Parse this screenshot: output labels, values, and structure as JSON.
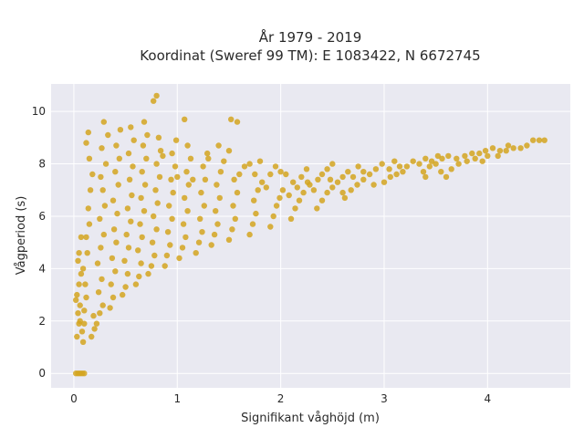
{
  "chart_data": {
    "type": "scatter",
    "title": "År 1979 - 2019",
    "subtitle": "Koordinat (Sweref 99 TM): E 1083422, N 6672745",
    "xlabel": "Signifikant våghöjd (m)",
    "ylabel": "Vågperiod (s)",
    "xlim": [
      -0.22,
      4.8
    ],
    "ylim": [
      -0.55,
      11.05
    ],
    "xticks": [
      0,
      1,
      2,
      3,
      4
    ],
    "yticks": [
      0,
      2,
      4,
      6,
      8,
      10
    ],
    "grid": true,
    "marker_color": "#D4A520",
    "plot_background": "#E9E9F1",
    "points": [
      [
        0.02,
        0.0
      ],
      [
        0.04,
        0.0
      ],
      [
        0.06,
        0.0
      ],
      [
        0.08,
        0.0
      ],
      [
        0.1,
        0.0
      ],
      [
        0.03,
        1.4
      ],
      [
        0.05,
        1.9
      ],
      [
        0.04,
        2.3
      ],
      [
        0.06,
        2.6
      ],
      [
        0.03,
        3.0
      ],
      [
        0.05,
        3.4
      ],
      [
        0.07,
        3.8
      ],
      [
        0.04,
        4.3
      ],
      [
        0.09,
        1.2
      ],
      [
        0.08,
        1.6
      ],
      [
        0.06,
        2.0
      ],
      [
        0.02,
        2.8
      ],
      [
        0.05,
        4.6
      ],
      [
        0.07,
        5.2
      ],
      [
        0.1,
        1.9
      ],
      [
        0.1,
        2.4
      ],
      [
        0.12,
        2.9
      ],
      [
        0.11,
        3.4
      ],
      [
        0.09,
        4.0
      ],
      [
        0.13,
        4.6
      ],
      [
        0.12,
        5.2
      ],
      [
        0.15,
        5.7
      ],
      [
        0.14,
        6.3
      ],
      [
        0.16,
        7.0
      ],
      [
        0.18,
        7.6
      ],
      [
        0.15,
        8.2
      ],
      [
        0.12,
        8.8
      ],
      [
        0.14,
        9.2
      ],
      [
        0.17,
        1.4
      ],
      [
        0.2,
        1.7
      ],
      [
        0.19,
        2.2
      ],
      [
        0.22,
        1.9
      ],
      [
        0.25,
        2.3
      ],
      [
        0.28,
        2.6
      ],
      [
        0.24,
        3.1
      ],
      [
        0.27,
        3.6
      ],
      [
        0.23,
        4.2
      ],
      [
        0.26,
        4.8
      ],
      [
        0.29,
        5.3
      ],
      [
        0.25,
        5.9
      ],
      [
        0.3,
        6.4
      ],
      [
        0.28,
        7.0
      ],
      [
        0.26,
        7.5
      ],
      [
        0.31,
        8.0
      ],
      [
        0.27,
        8.6
      ],
      [
        0.33,
        9.1
      ],
      [
        0.29,
        9.6
      ],
      [
        0.35,
        2.5
      ],
      [
        0.38,
        2.9
      ],
      [
        0.36,
        3.4
      ],
      [
        0.4,
        3.9
      ],
      [
        0.37,
        4.4
      ],
      [
        0.41,
        5.0
      ],
      [
        0.39,
        5.5
      ],
      [
        0.42,
        6.1
      ],
      [
        0.38,
        6.6
      ],
      [
        0.43,
        7.2
      ],
      [
        0.4,
        7.7
      ],
      [
        0.44,
        8.2
      ],
      [
        0.41,
        8.7
      ],
      [
        0.45,
        9.3
      ],
      [
        0.47,
        3.0
      ],
      [
        0.5,
        3.3
      ],
      [
        0.52,
        3.8
      ],
      [
        0.49,
        4.3
      ],
      [
        0.53,
        4.8
      ],
      [
        0.51,
        5.3
      ],
      [
        0.55,
        5.8
      ],
      [
        0.52,
        6.3
      ],
      [
        0.56,
        6.8
      ],
      [
        0.54,
        7.4
      ],
      [
        0.57,
        7.9
      ],
      [
        0.53,
        8.4
      ],
      [
        0.58,
        8.9
      ],
      [
        0.55,
        9.4
      ],
      [
        0.6,
        3.4
      ],
      [
        0.63,
        3.7
      ],
      [
        0.65,
        4.2
      ],
      [
        0.62,
        4.7
      ],
      [
        0.66,
        5.2
      ],
      [
        0.64,
        5.7
      ],
      [
        0.68,
        6.2
      ],
      [
        0.65,
        6.7
      ],
      [
        0.69,
        7.2
      ],
      [
        0.66,
        7.7
      ],
      [
        0.7,
        8.2
      ],
      [
        0.67,
        8.7
      ],
      [
        0.71,
        9.1
      ],
      [
        0.68,
        9.6
      ],
      [
        0.77,
        10.4
      ],
      [
        0.8,
        10.6
      ],
      [
        0.72,
        3.8
      ],
      [
        0.75,
        4.1
      ],
      [
        0.78,
        4.5
      ],
      [
        0.76,
        5.0
      ],
      [
        0.8,
        5.5
      ],
      [
        0.77,
        6.0
      ],
      [
        0.81,
        6.5
      ],
      [
        0.79,
        7.0
      ],
      [
        0.83,
        7.5
      ],
      [
        0.8,
        8.0
      ],
      [
        0.84,
        8.5
      ],
      [
        0.82,
        9.0
      ],
      [
        0.86,
        8.3
      ],
      [
        0.88,
        4.1
      ],
      [
        0.9,
        4.5
      ],
      [
        0.93,
        4.9
      ],
      [
        0.91,
        5.4
      ],
      [
        0.95,
        5.9
      ],
      [
        0.92,
        6.4
      ],
      [
        0.96,
        6.9
      ],
      [
        0.94,
        7.4
      ],
      [
        0.98,
        7.9
      ],
      [
        0.95,
        8.4
      ],
      [
        0.99,
        8.9
      ],
      [
        1.0,
        7.5
      ],
      [
        1.02,
        4.4
      ],
      [
        1.05,
        4.8
      ],
      [
        1.08,
        5.2
      ],
      [
        1.06,
        5.7
      ],
      [
        1.1,
        6.2
      ],
      [
        1.07,
        6.7
      ],
      [
        1.11,
        7.2
      ],
      [
        1.09,
        7.7
      ],
      [
        1.13,
        8.2
      ],
      [
        1.1,
        8.7
      ],
      [
        1.07,
        9.7
      ],
      [
        1.15,
        7.4
      ],
      [
        1.18,
        4.6
      ],
      [
        1.21,
        5.0
      ],
      [
        1.24,
        5.4
      ],
      [
        1.22,
        5.9
      ],
      [
        1.26,
        6.4
      ],
      [
        1.23,
        6.9
      ],
      [
        1.27,
        7.4
      ],
      [
        1.25,
        7.9
      ],
      [
        1.29,
        8.4
      ],
      [
        1.3,
        8.2
      ],
      [
        1.4,
        8.7
      ],
      [
        1.33,
        4.9
      ],
      [
        1.36,
        5.3
      ],
      [
        1.39,
        5.7
      ],
      [
        1.37,
        6.2
      ],
      [
        1.41,
        6.7
      ],
      [
        1.38,
        7.2
      ],
      [
        1.42,
        7.7
      ],
      [
        1.45,
        8.1
      ],
      [
        1.5,
        8.5
      ],
      [
        1.52,
        9.7
      ],
      [
        1.58,
        9.6
      ],
      [
        1.5,
        5.1
      ],
      [
        1.53,
        5.5
      ],
      [
        1.56,
        5.9
      ],
      [
        1.54,
        6.4
      ],
      [
        1.58,
        6.9
      ],
      [
        1.55,
        7.4
      ],
      [
        1.6,
        7.6
      ],
      [
        1.65,
        7.9
      ],
      [
        1.7,
        8.0
      ],
      [
        1.75,
        7.6
      ],
      [
        1.8,
        8.1
      ],
      [
        1.7,
        5.3
      ],
      [
        1.73,
        5.7
      ],
      [
        1.76,
        6.1
      ],
      [
        1.74,
        6.6
      ],
      [
        1.78,
        7.0
      ],
      [
        1.82,
        7.3
      ],
      [
        1.86,
        7.1
      ],
      [
        1.9,
        7.6
      ],
      [
        1.95,
        7.9
      ],
      [
        2.0,
        7.7
      ],
      [
        2.05,
        7.6
      ],
      [
        1.9,
        5.6
      ],
      [
        1.93,
        6.0
      ],
      [
        1.96,
        6.4
      ],
      [
        1.99,
        6.7
      ],
      [
        2.02,
        7.0
      ],
      [
        2.08,
        6.8
      ],
      [
        2.12,
        7.3
      ],
      [
        2.16,
        7.1
      ],
      [
        2.2,
        7.5
      ],
      [
        2.25,
        7.8
      ],
      [
        2.26,
        7.3
      ],
      [
        2.1,
        5.9
      ],
      [
        2.14,
        6.3
      ],
      [
        2.18,
        6.6
      ],
      [
        2.22,
        6.9
      ],
      [
        2.28,
        7.2
      ],
      [
        2.32,
        7.0
      ],
      [
        2.36,
        7.4
      ],
      [
        2.4,
        7.6
      ],
      [
        2.45,
        7.8
      ],
      [
        2.5,
        8.0
      ],
      [
        2.48,
        7.4
      ],
      [
        2.35,
        6.3
      ],
      [
        2.4,
        6.6
      ],
      [
        2.45,
        6.9
      ],
      [
        2.5,
        7.1
      ],
      [
        2.55,
        7.3
      ],
      [
        2.6,
        7.5
      ],
      [
        2.65,
        7.7
      ],
      [
        2.7,
        7.5
      ],
      [
        2.75,
        7.9
      ],
      [
        2.8,
        7.7
      ],
      [
        2.6,
        6.9
      ],
      [
        2.62,
        6.7
      ],
      [
        2.68,
        7.0
      ],
      [
        2.74,
        7.2
      ],
      [
        2.8,
        7.4
      ],
      [
        2.86,
        7.6
      ],
      [
        2.92,
        7.8
      ],
      [
        2.98,
        8.0
      ],
      [
        3.05,
        7.8
      ],
      [
        3.1,
        8.1
      ],
      [
        3.15,
        7.9
      ],
      [
        2.9,
        7.2
      ],
      [
        3.0,
        7.3
      ],
      [
        3.06,
        7.5
      ],
      [
        3.12,
        7.6
      ],
      [
        3.18,
        7.7
      ],
      [
        3.22,
        7.9
      ],
      [
        3.28,
        8.1
      ],
      [
        3.34,
        8.0
      ],
      [
        3.4,
        8.2
      ],
      [
        3.46,
        8.1
      ],
      [
        3.52,
        8.3
      ],
      [
        3.38,
        7.7
      ],
      [
        3.44,
        7.9
      ],
      [
        3.5,
        8.0
      ],
      [
        3.56,
        8.2
      ],
      [
        3.62,
        8.3
      ],
      [
        3.7,
        8.2
      ],
      [
        3.78,
        8.3
      ],
      [
        3.85,
        8.4
      ],
      [
        3.55,
        7.7
      ],
      [
        3.65,
        7.8
      ],
      [
        3.72,
        8.0
      ],
      [
        3.8,
        8.1
      ],
      [
        3.88,
        8.2
      ],
      [
        3.92,
        8.4
      ],
      [
        3.98,
        8.5
      ],
      [
        4.05,
        8.6
      ],
      [
        4.12,
        8.5
      ],
      [
        4.2,
        8.7
      ],
      [
        3.95,
        8.1
      ],
      [
        4.0,
        8.3
      ],
      [
        4.1,
        8.3
      ],
      [
        4.18,
        8.5
      ],
      [
        4.25,
        8.6
      ],
      [
        4.32,
        8.6
      ],
      [
        4.38,
        8.7
      ],
      [
        4.44,
        8.9
      ],
      [
        4.5,
        8.9
      ],
      [
        4.55,
        8.9
      ],
      [
        3.6,
        7.5
      ],
      [
        3.4,
        7.5
      ]
    ]
  }
}
